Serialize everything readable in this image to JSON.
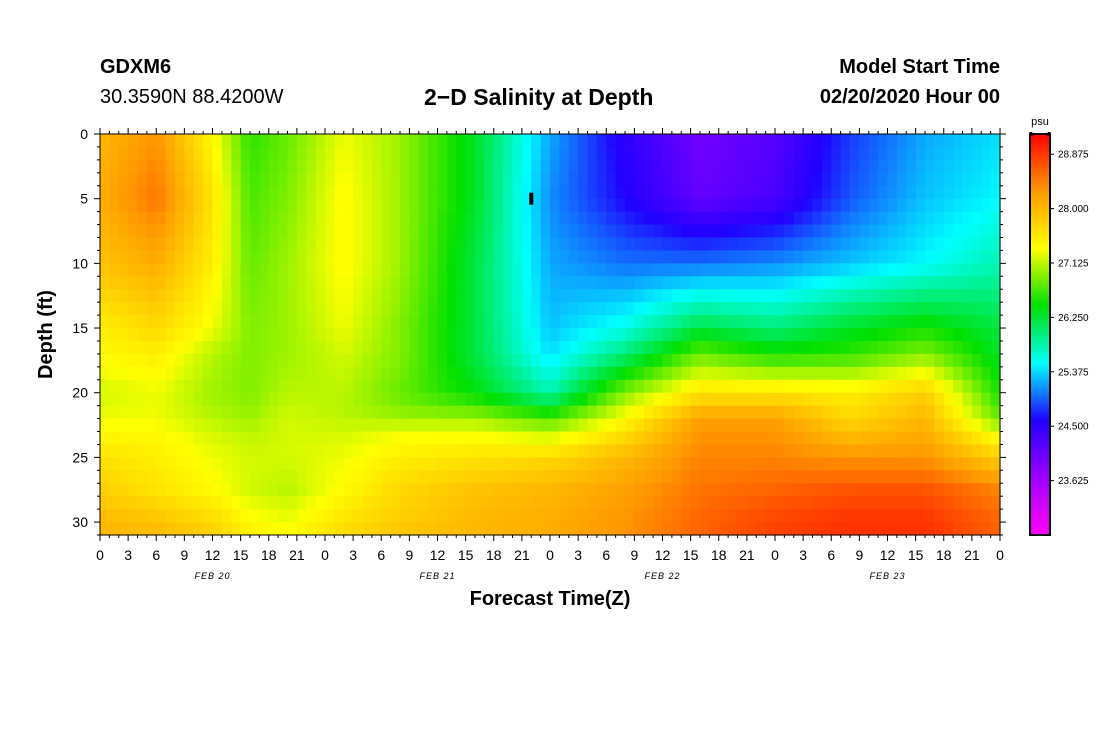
{
  "header": {
    "station": "GDXM6",
    "coords": "30.3590N 88.4200W",
    "title": "2−D Salinity at Depth",
    "start_label": "Model Start Time",
    "start_value": "02/20/2020 Hour 00"
  },
  "chart_data": {
    "type": "heatmap",
    "title": "2−D Salinity at Depth",
    "xlabel": "Forecast Time(Z)",
    "ylabel": "Depth (ft)",
    "x_tick_labels": [
      "0",
      "3",
      "6",
      "9",
      "12",
      "15",
      "18",
      "21",
      "0",
      "3",
      "6",
      "9",
      "12",
      "15",
      "18",
      "21",
      "0",
      "3",
      "6",
      "9",
      "12",
      "15",
      "18",
      "21",
      "0",
      "3",
      "6",
      "9",
      "12",
      "15",
      "18",
      "21",
      "0"
    ],
    "x_range_hours": [
      0,
      96
    ],
    "day_labels": [
      {
        "label": "FEB 20",
        "hour": 12
      },
      {
        "label": "FEB 21",
        "hour": 36
      },
      {
        "label": "FEB 22",
        "hour": 60
      },
      {
        "label": "FEB 23",
        "hour": 84
      }
    ],
    "y_ticks": [
      0,
      5,
      10,
      15,
      20,
      25,
      30
    ],
    "ylim": [
      0,
      31
    ],
    "y_inverted": true,
    "colorbar": {
      "unit": "psu",
      "ticks": [
        28.875,
        28.0,
        27.125,
        26.25,
        25.375,
        24.5,
        23.625
      ],
      "tick_labels": [
        "28.875",
        "28.000",
        "27.125",
        "26.250",
        "25.375",
        "24.500",
        "23.625"
      ],
      "range": [
        22.75,
        29.2
      ],
      "colors": [
        "#ff00ff",
        "#a000ff",
        "#2000ff",
        "#00ffff",
        "#00e000",
        "#ffff00",
        "#ff9900",
        "#ff0000"
      ]
    },
    "salinity_grid": {
      "x_hours": [
        0,
        6,
        12,
        16,
        20,
        26,
        32,
        40,
        48,
        56,
        64,
        72,
        80,
        88,
        96
      ],
      "depths_ft": [
        0,
        5,
        10,
        15,
        17,
        20,
        22,
        23,
        25,
        27.5,
        30,
        31
      ],
      "values": [
        [
          28.0,
          28.3,
          27.4,
          26.6,
          26.8,
          27.3,
          27.0,
          26.3,
          25.2,
          24.5,
          24.0,
          24.2,
          24.8,
          25.2,
          25.4
        ],
        [
          28.1,
          28.5,
          27.6,
          26.7,
          26.9,
          27.4,
          27.0,
          26.3,
          25.1,
          24.6,
          24.1,
          24.3,
          24.9,
          25.3,
          25.5
        ],
        [
          27.9,
          28.1,
          27.5,
          26.8,
          27.0,
          27.4,
          27.0,
          26.2,
          25.2,
          25.0,
          25.0,
          25.1,
          25.3,
          25.5,
          25.8
        ],
        [
          27.5,
          27.7,
          27.3,
          26.9,
          27.0,
          27.3,
          26.9,
          26.2,
          25.3,
          25.6,
          26.2,
          26.0,
          26.3,
          26.5,
          26.2
        ],
        [
          27.4,
          27.5,
          27.1,
          26.9,
          27.0,
          27.2,
          26.9,
          26.2,
          25.4,
          26.0,
          26.8,
          26.5,
          26.6,
          26.9,
          26.3
        ],
        [
          27.2,
          27.3,
          27.0,
          26.9,
          27.1,
          27.1,
          26.8,
          26.4,
          25.8,
          26.9,
          27.6,
          27.6,
          27.5,
          27.8,
          26.5
        ],
        [
          27.3,
          27.3,
          27.1,
          27.0,
          27.2,
          27.1,
          27.0,
          27.0,
          26.7,
          27.4,
          28.2,
          28.2,
          27.7,
          28.0,
          26.8
        ],
        [
          27.4,
          27.4,
          27.2,
          27.1,
          27.2,
          27.2,
          27.3,
          27.3,
          27.1,
          27.6,
          28.3,
          28.3,
          27.9,
          28.1,
          27.2
        ],
        [
          27.6,
          27.5,
          27.3,
          27.2,
          27.2,
          27.3,
          27.5,
          27.6,
          27.7,
          28.0,
          28.4,
          28.4,
          28.3,
          28.3,
          27.8
        ],
        [
          27.8,
          27.6,
          27.4,
          27.2,
          27.1,
          27.4,
          27.7,
          27.9,
          28.0,
          28.2,
          28.5,
          28.6,
          28.7,
          28.7,
          28.4
        ],
        [
          28.0,
          27.9,
          27.7,
          27.4,
          27.3,
          27.6,
          27.8,
          28.0,
          28.1,
          28.3,
          28.6,
          28.8,
          28.9,
          28.9,
          28.6
        ],
        [
          28.0,
          28.0,
          27.8,
          27.5,
          27.4,
          27.7,
          27.9,
          28.0,
          28.1,
          28.3,
          28.6,
          28.8,
          28.9,
          28.9,
          28.6
        ]
      ]
    },
    "marker": {
      "hour": 46,
      "depth_ft": 5
    }
  }
}
